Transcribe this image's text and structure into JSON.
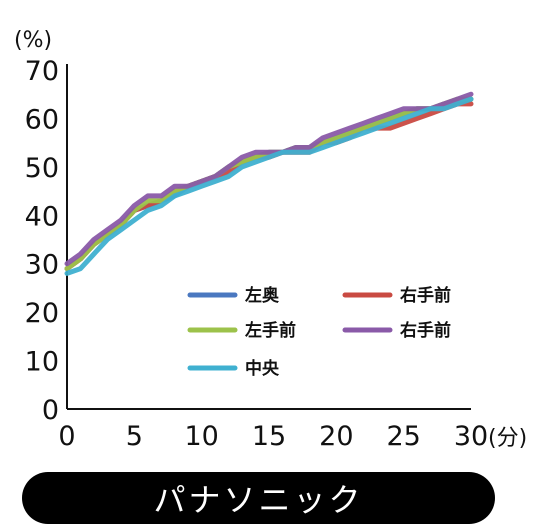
{
  "chart_data": {
    "type": "line",
    "title": "",
    "ylabel": "(%)",
    "xlabel": "(分)",
    "xlim": [
      0,
      30
    ],
    "ylim": [
      0,
      70
    ],
    "xticks": [
      0,
      5,
      10,
      15,
      20,
      25,
      30
    ],
    "yticks": [
      0,
      10,
      20,
      30,
      40,
      50,
      60,
      70
    ],
    "grid": false,
    "legend_position": "lower-right",
    "x": [
      0,
      1,
      2,
      3,
      4,
      5,
      6,
      7,
      8,
      9,
      10,
      11,
      12,
      13,
      14,
      15,
      16,
      17,
      18,
      19,
      20,
      21,
      22,
      23,
      24,
      25,
      26,
      27,
      28,
      29,
      30
    ],
    "series": [
      {
        "name": "左奥",
        "color": "#4a78c0",
        "values": [
          29,
          31,
          34,
          36,
          38,
          41,
          42,
          43,
          44,
          46,
          47,
          48,
          50,
          51,
          52,
          53,
          53,
          54,
          54,
          55,
          56,
          57,
          58,
          59,
          60,
          61,
          62,
          62,
          63,
          63,
          64
        ]
      },
      {
        "name": "右手前",
        "color": "#c94a42",
        "values": [
          29,
          31,
          34,
          36,
          38,
          41,
          42,
          43,
          45,
          46,
          47,
          48,
          49,
          51,
          52,
          52,
          53,
          53,
          53,
          55,
          55,
          56,
          58,
          58,
          58,
          59,
          60,
          61,
          62,
          63,
          63
        ]
      },
      {
        "name": "左手前",
        "color": "#9cc24a",
        "values": [
          29,
          31,
          34,
          36,
          38,
          41,
          43,
          43,
          45,
          46,
          47,
          48,
          50,
          51,
          52,
          53,
          53,
          54,
          54,
          55,
          56,
          57,
          58,
          59,
          60,
          61,
          62,
          62,
          63,
          64,
          64
        ]
      },
      {
        "name": "右手前",
        "color": "#8a5aa8",
        "values": [
          30,
          32,
          35,
          37,
          39,
          42,
          44,
          44,
          46,
          46,
          47,
          48,
          50,
          52,
          53,
          53,
          53,
          54,
          54,
          56,
          57,
          58,
          59,
          60,
          61,
          62,
          62,
          62,
          63,
          64,
          65
        ]
      },
      {
        "name": "中央",
        "color": "#3fb0d0",
        "values": [
          28,
          29,
          32,
          35,
          37,
          39,
          41,
          42,
          44,
          45,
          46,
          47,
          48,
          50,
          51,
          52,
          53,
          53,
          53,
          54,
          55,
          56,
          57,
          58,
          59,
          60,
          61,
          62,
          62,
          63,
          64
        ]
      }
    ]
  },
  "banner": {
    "label": "パナソニック"
  }
}
